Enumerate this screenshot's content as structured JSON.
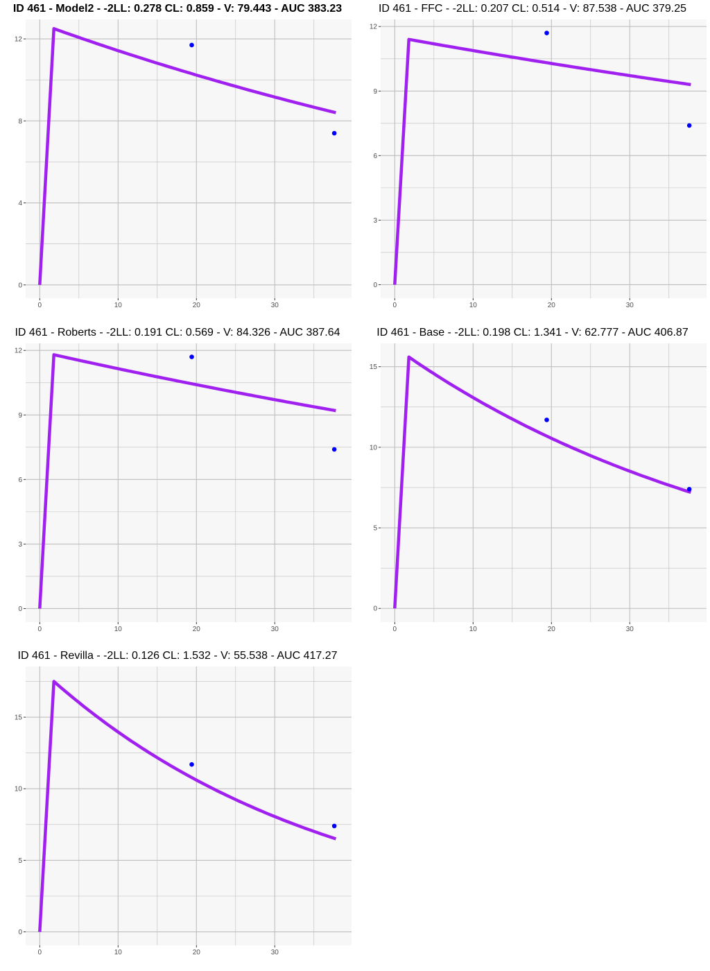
{
  "colors": {
    "panel_background": "#f7f7f7",
    "grid": "#bebebe",
    "line": "#a020f0",
    "points": "#0000ff",
    "tick_text": "#4d4d4d"
  },
  "chart_data": [
    {
      "type": "line",
      "title": "ID 461 - Model2 - -2LL: 0.278 CL: 0.859 - V: 79.443 - AUC 383.23",
      "title_bold": true,
      "xlim": [
        -1.8,
        39.8
      ],
      "ylim": [
        -0.65,
        12.95
      ],
      "xticks": [
        0,
        10,
        20,
        30
      ],
      "yticks": [
        0,
        4,
        8,
        12
      ],
      "line": {
        "x": [
          0,
          1.8,
          37.8
        ],
        "y": [
          0,
          12.5,
          8.4
        ],
        "curve_k": 0.0104
      },
      "points": {
        "x": [
          19.4,
          37.6
        ],
        "y": [
          11.7,
          7.4
        ]
      },
      "grid": "on",
      "legend": "none"
    },
    {
      "type": "line",
      "title": "ID 461 - FFC - -2LL: 0.207 CL: 0.514 - V: 87.538 - AUC 379.25",
      "title_bold": false,
      "xlim": [
        -1.8,
        39.8
      ],
      "ylim": [
        -0.63,
        12.33
      ],
      "xticks": [
        0,
        10,
        20,
        30
      ],
      "yticks": [
        0,
        3,
        6,
        9,
        12
      ],
      "line": {
        "x": [
          0,
          1.8,
          37.8
        ],
        "y": [
          0,
          11.4,
          9.3
        ],
        "curve_k": 0.0059
      },
      "points": {
        "x": [
          19.4,
          37.6
        ],
        "y": [
          11.7,
          7.4
        ]
      },
      "grid": "on",
      "legend": "none"
    },
    {
      "type": "line",
      "title": "ID 461 - Roberts - -2LL: 0.191 CL: 0.569 - V: 84.326 - AUC 387.64",
      "title_bold": false,
      "xlim": [
        -1.8,
        39.8
      ],
      "ylim": [
        -0.63,
        12.33
      ],
      "xticks": [
        0,
        10,
        20,
        30
      ],
      "yticks": [
        0,
        3,
        6,
        9,
        12
      ],
      "line": {
        "x": [
          0,
          1.8,
          37.8
        ],
        "y": [
          0,
          11.8,
          9.2
        ],
        "curve_k": 0.0068
      },
      "points": {
        "x": [
          19.4,
          37.6
        ],
        "y": [
          11.7,
          7.4
        ]
      },
      "grid": "on",
      "legend": "none"
    },
    {
      "type": "line",
      "title": "ID 461 - Base - -2LL: 0.198 CL: 1.341 - V: 62.777 - AUC 406.87",
      "title_bold": false,
      "xlim": [
        -1.8,
        39.8
      ],
      "ylim": [
        -0.85,
        16.45
      ],
      "xticks": [
        0,
        10,
        20,
        30
      ],
      "yticks": [
        0,
        5,
        10,
        15
      ],
      "line": {
        "x": [
          0,
          1.8,
          37.8
        ],
        "y": [
          0,
          15.6,
          7.2
        ],
        "curve_k": 0.0214
      },
      "points": {
        "x": [
          19.4,
          37.6
        ],
        "y": [
          11.7,
          7.4
        ]
      },
      "grid": "on",
      "legend": "none"
    },
    {
      "type": "line",
      "title": "ID 461 - Revilla - -2LL: 0.126 CL: 1.532 - V: 55.538 - AUC 417.27",
      "title_bold": false,
      "xlim": [
        -1.8,
        39.8
      ],
      "ylim": [
        -0.94,
        18.54
      ],
      "xticks": [
        0,
        10,
        20,
        30
      ],
      "yticks": [
        0,
        5,
        10,
        15
      ],
      "line": {
        "x": [
          0,
          1.8,
          37.8
        ],
        "y": [
          0,
          17.5,
          6.5
        ],
        "curve_k": 0.0275
      },
      "points": {
        "x": [
          19.4,
          37.6
        ],
        "y": [
          11.7,
          7.4
        ]
      },
      "grid": "on",
      "legend": "none"
    }
  ]
}
